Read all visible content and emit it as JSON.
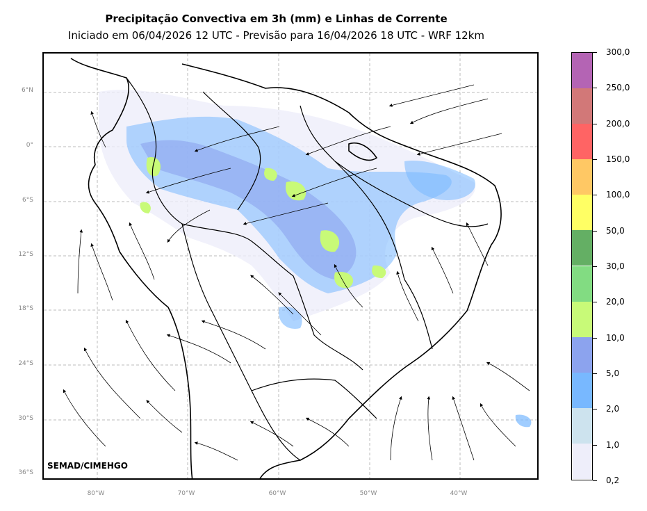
{
  "title": "Precipitação Convectiva em 3h (mm) e Linhas de Corrente",
  "subtitle": "Iniciado em 06/04/2026 12 UTC - Previsão para 16/04/2026 18 UTC - WRF 12km",
  "credit": "SEMAD/CIMEHGO",
  "lat_labels": [
    "6°N",
    "0°",
    "6°S",
    "12°S",
    "18°S",
    "24°S",
    "30°S",
    "36°S"
  ],
  "lon_labels": [
    "80°W",
    "70°W",
    "60°W",
    "50°W",
    "40°W"
  ],
  "colorbar": {
    "labels": [
      "0,2",
      "1,0",
      "2,0",
      "5,0",
      "10,0",
      "20,0",
      "30,0",
      "50,0",
      "100,0",
      "150,0",
      "200,0",
      "250,0",
      "300,0"
    ],
    "colors": [
      "#eeeefa",
      "#cde3ee",
      "#78b8ff",
      "#8ca3ee",
      "#c8fa78",
      "#82dc82",
      "#64af64",
      "#ffff64",
      "#ffc864",
      "#ff6464",
      "#d27878",
      "#b464b4"
    ]
  }
}
